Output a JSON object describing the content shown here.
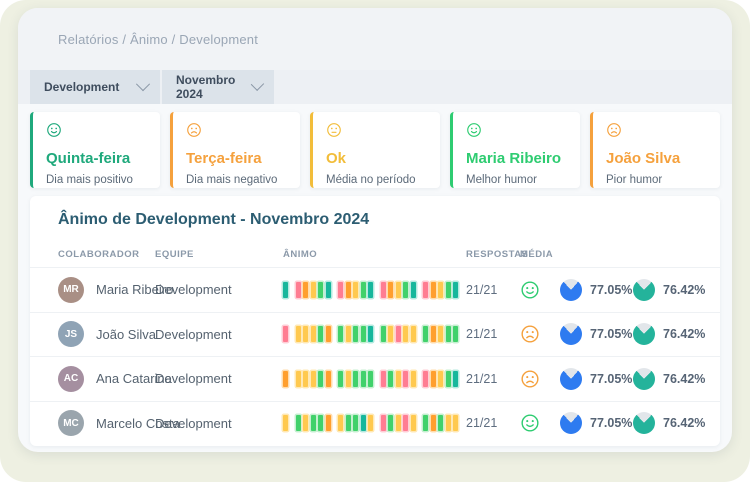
{
  "colors": {
    "page_bg": "#eef0e2",
    "window_bg": "#f7f9fb",
    "topbar_bg": "#f1f3f6",
    "breadcrumb_text": "#9aa6b5",
    "filterbar_bg": "#edf0f4",
    "select_bg": "#dce3ea",
    "report_title": "#2c5d72",
    "pie_rest": "#e2e6ea"
  },
  "breadcrumb": "Relatórios / Ânimo / Development",
  "filters": {
    "team": "Development",
    "month": "Novembro 2024"
  },
  "summary_cards": [
    {
      "icon": "smile",
      "accent": "#1fa97c",
      "title": "Quinta-feira",
      "subtitle": "Dia mais positivo"
    },
    {
      "icon": "frown",
      "accent": "#f5a13d",
      "title": "Terça-feira",
      "subtitle": "Dia mais negativo"
    },
    {
      "icon": "neutral",
      "accent": "#f2bd3a",
      "title": "Ok",
      "subtitle": "Média no período"
    },
    {
      "icon": "smile",
      "accent": "#2ecc71",
      "title": "Maria Ribeiro",
      "subtitle": "Melhor humor"
    },
    {
      "icon": "frown",
      "accent": "#f5a13d",
      "title": "João Silva",
      "subtitle": "Pior humor"
    }
  ],
  "mood_palette": {
    "t": {
      "main": "#17b79c",
      "halo": "#b5e9df"
    },
    "g": {
      "main": "#41d16b",
      "halo": "#c5efd0"
    },
    "y": {
      "main": "#ffc94f",
      "halo": "#ffe8b5"
    },
    "o": {
      "main": "#ff9f2e",
      "halo": "#ffdcad"
    },
    "p": {
      "main": "#ff7d92",
      "halo": "#ffcdd6"
    }
  },
  "face_colors": {
    "smile": "#2ecc71",
    "frown": "#f5a13d",
    "neutral": "#f2bd3a"
  },
  "report": {
    "title": "Ânimo de Development - Novembro 2024",
    "columns": [
      "COLABORADOR",
      "EQUIPE",
      "ÂNIMO",
      "RESPOSTAS",
      "MÉDIA"
    ],
    "rows": [
      {
        "initials": "MR",
        "avatar_bg": "#a98f85",
        "name": "Maria Ribeiro",
        "team": "Development",
        "bars": [
          [
            "t"
          ],
          [
            "p",
            "o",
            "y",
            "g",
            "t"
          ],
          [
            "p",
            "o",
            "y",
            "g",
            "t"
          ],
          [
            "p",
            "o",
            "y",
            "g",
            "t"
          ],
          [
            "p",
            "o",
            "y",
            "g",
            "t"
          ]
        ],
        "responses": "21/21",
        "mood": "smile",
        "pies": [
          {
            "value": 77.05,
            "label": "77.05%",
            "color": "#2e7bf0"
          },
          {
            "value": 76.42,
            "label": "76.42%",
            "color": "#24b39b"
          }
        ]
      },
      {
        "initials": "JS",
        "avatar_bg": "#8fa3b5",
        "name": "João Silva",
        "team": "Development",
        "bars": [
          [
            "p"
          ],
          [
            "y",
            "y",
            "y",
            "g",
            "o"
          ],
          [
            "g",
            "y",
            "g",
            "g",
            "t"
          ],
          [
            "g",
            "y",
            "p",
            "y",
            "y"
          ],
          [
            "g",
            "o",
            "y",
            "g",
            "g"
          ]
        ],
        "responses": "21/21",
        "mood": "frown",
        "pies": [
          {
            "value": 77.05,
            "label": "77.05%",
            "color": "#2e7bf0"
          },
          {
            "value": 76.42,
            "label": "76.42%",
            "color": "#24b39b"
          }
        ]
      },
      {
        "initials": "AC",
        "avatar_bg": "#a58fa0",
        "name": "Ana Catarina",
        "team": "Development",
        "bars": [
          [
            "o"
          ],
          [
            "y",
            "y",
            "y",
            "g",
            "o"
          ],
          [
            "g",
            "y",
            "g",
            "g",
            "g"
          ],
          [
            "p",
            "g",
            "y",
            "p",
            "y"
          ],
          [
            "p",
            "o",
            "y",
            "g",
            "t"
          ]
        ],
        "responses": "21/21",
        "mood": "frown",
        "pies": [
          {
            "value": 77.05,
            "label": "77.05%",
            "color": "#2e7bf0"
          },
          {
            "value": 76.42,
            "label": "76.42%",
            "color": "#24b39b"
          }
        ]
      },
      {
        "initials": "MC",
        "avatar_bg": "#9aa5ad",
        "name": "Marcelo Costa",
        "team": "Development",
        "bars": [
          [
            "y"
          ],
          [
            "g",
            "y",
            "g",
            "g",
            "o"
          ],
          [
            "y",
            "g",
            "g",
            "t",
            "y"
          ],
          [
            "p",
            "g",
            "y",
            "p",
            "y"
          ],
          [
            "g",
            "o",
            "g",
            "y",
            "y"
          ]
        ],
        "responses": "21/21",
        "mood": "smile",
        "pies": [
          {
            "value": 77.05,
            "label": "77.05%",
            "color": "#2e7bf0"
          },
          {
            "value": 76.42,
            "label": "76.42%",
            "color": "#24b39b"
          }
        ]
      }
    ]
  }
}
